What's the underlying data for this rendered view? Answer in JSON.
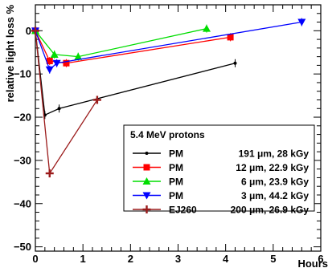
{
  "chart_data": {
    "type": "line",
    "xlabel": "Hours",
    "ylabel": "relative light loss %",
    "xlim": [
      0,
      6
    ],
    "ylim": [
      -51,
      6
    ],
    "x_ticks": [
      0,
      1,
      2,
      3,
      4,
      5,
      6
    ],
    "y_ticks": [
      0,
      -10,
      -20,
      -30,
      -40,
      -50
    ],
    "x_tick_labels": [
      "0",
      "1",
      "2",
      "3",
      "4",
      "5",
      "6"
    ],
    "y_tick_labels": [
      "0",
      "−10",
      "−20",
      "−30",
      "−40",
      "−50"
    ],
    "legend_title": "5.4 MeV protons",
    "legend_position": "lower-right",
    "grid": false,
    "series": [
      {
        "label_name": "PM",
        "label_detail": "191 μm, 28 kGy",
        "color": "#000000",
        "marker": "dot",
        "x": [
          0.0,
          0.2,
          0.5,
          4.2
        ],
        "y": [
          0,
          -19.5,
          -18,
          -7.5
        ]
      },
      {
        "label_name": "PM",
        "label_detail": "12 μm, 22.9 kGy",
        "color": "#ff0000",
        "marker": "square",
        "x": [
          0.0,
          0.3,
          0.65,
          4.1
        ],
        "y": [
          0,
          -7,
          -7.5,
          -1.5
        ]
      },
      {
        "label_name": "PM",
        "label_detail": "6 μm, 23.9 kGy",
        "color": "#00dd00",
        "marker": "triangle-up",
        "x": [
          0.0,
          0.4,
          0.9,
          3.6
        ],
        "y": [
          0,
          -5.5,
          -6,
          0.5
        ]
      },
      {
        "label_name": "PM",
        "label_detail": "3 μm, 44.2 kGy",
        "color": "#0000ff",
        "marker": "triangle-down",
        "x": [
          0.0,
          0.3,
          0.45,
          5.6
        ],
        "y": [
          0,
          -9,
          -7.5,
          2
        ]
      },
      {
        "label_name": "EJ260",
        "label_detail": "200 μm, 26.9 kGy",
        "color": "#9b1b1b",
        "marker": "cross",
        "x": [
          0.0,
          0.3,
          1.3
        ],
        "y": [
          0,
          -33,
          -16
        ]
      }
    ]
  }
}
